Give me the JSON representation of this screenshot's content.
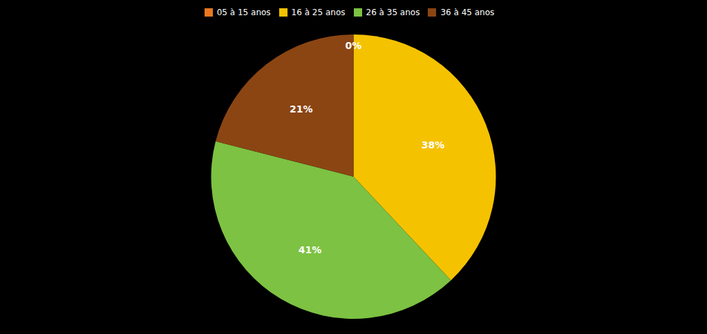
{
  "chart_data": {
    "type": "pie",
    "categories": [
      "05 à 15 anos",
      "16 à 25 anos",
      "26 à 35 anos",
      "36 à 45 anos"
    ],
    "values": [
      0,
      38,
      41,
      21
    ],
    "value_labels": [
      "0%",
      "38%",
      "41%",
      "21%"
    ],
    "colors": [
      "#E87722",
      "#F5C200",
      "#7DC242",
      "#8B4513"
    ],
    "data_labels": true,
    "legend": "top"
  }
}
